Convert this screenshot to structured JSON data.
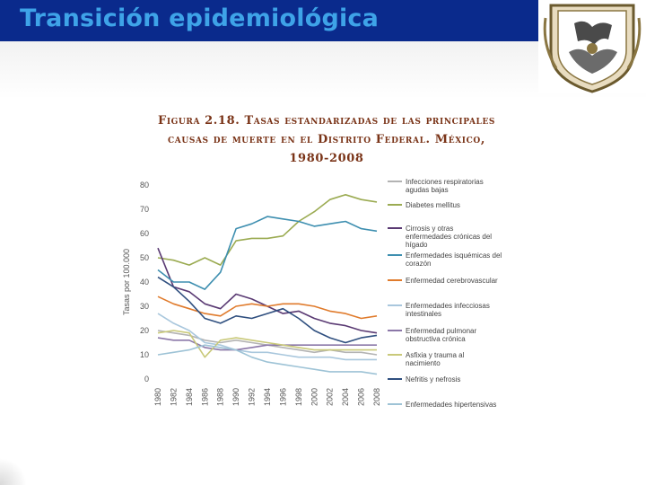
{
  "slide": {
    "title": "Transición epidemiológica",
    "figure_title_lines": [
      "Figura 2.18. Tasas estandarizadas de las principales",
      "causas de muerte en el Distrito Federal. México,",
      "1980-2008"
    ]
  },
  "seal": {
    "icon": "university-seal-icon"
  },
  "chart_data": {
    "type": "line",
    "ylabel": "Tasas por 100.000",
    "xlabel": "",
    "ylim": [
      0,
      80
    ],
    "yticks": [
      "0",
      "10",
      "20",
      "30",
      "40",
      "50",
      "60",
      "70",
      "80"
    ],
    "x": [
      1980,
      1982,
      1984,
      1986,
      1988,
      1990,
      1992,
      1994,
      1996,
      1998,
      2000,
      2002,
      2004,
      2006,
      2008
    ],
    "xticks": [
      "1980",
      "1982",
      "1984",
      "1986",
      "1988",
      "1990",
      "1992",
      "1994",
      "1996",
      "1998",
      "2000",
      "2002",
      "2004",
      "2006",
      "2008"
    ],
    "grid": false,
    "legend_position": "right",
    "series": [
      {
        "name": "Infecciones respiratorias agudas bajas",
        "color": "#b3b3b3",
        "values": [
          20,
          19,
          18,
          16,
          15,
          16,
          15,
          14,
          13,
          12,
          11,
          12,
          11,
          11,
          10
        ]
      },
      {
        "name": "Diabetes mellitus",
        "color": "#9bab52",
        "values": [
          50,
          49,
          47,
          50,
          47,
          57,
          58,
          58,
          59,
          65,
          69,
          74,
          76,
          74,
          73
        ]
      },
      {
        "name": "Cirrosis y otras enfermedades crónicas del hígado",
        "color": "#5a3a73",
        "values": [
          54,
          38,
          36,
          31,
          29,
          35,
          33,
          30,
          27,
          28,
          25,
          23,
          22,
          20,
          19
        ]
      },
      {
        "name": "Enfermedades isquémicas del corazón",
        "color": "#3e8fb0",
        "values": [
          45,
          40,
          40,
          37,
          44,
          62,
          64,
          67,
          66,
          65,
          63,
          64,
          65,
          62,
          61
        ]
      },
      {
        "name": "Enfermedad cerebrovascular",
        "color": "#e07b2c",
        "values": [
          34,
          31,
          29,
          27,
          26,
          30,
          31,
          30,
          31,
          31,
          30,
          28,
          27,
          25,
          26
        ]
      },
      {
        "name": "Enfermedades infecciosas intestinales",
        "color": "#a9c7dd",
        "values": [
          27,
          23,
          20,
          15,
          14,
          12,
          11,
          11,
          10,
          9,
          9,
          9,
          8,
          8,
          8
        ]
      },
      {
        "name": "Enfermedad pulmonar obstructiva crónica",
        "color": "#8b77a8",
        "values": [
          17,
          16,
          16,
          13,
          12,
          12,
          13,
          14,
          14,
          14,
          14,
          14,
          14,
          14,
          14
        ]
      },
      {
        "name": "Asfixia y trauma al nacimiento",
        "color": "#c9c97a",
        "values": [
          19,
          20,
          19,
          9,
          16,
          17,
          16,
          15,
          14,
          13,
          12,
          12,
          12,
          12,
          12
        ]
      },
      {
        "name": "Nefritis y nefrosis",
        "color": "#2f4f7f",
        "values": [
          42,
          38,
          32,
          25,
          23,
          26,
          25,
          27,
          29,
          25,
          20,
          17,
          15,
          17,
          18
        ]
      },
      {
        "name": "Enfermedades hipertensivas",
        "color": "#9ec3d6",
        "values": [
          10,
          11,
          12,
          14,
          13,
          12,
          9,
          7,
          6,
          5,
          4,
          3,
          3,
          3,
          2
        ]
      }
    ]
  }
}
